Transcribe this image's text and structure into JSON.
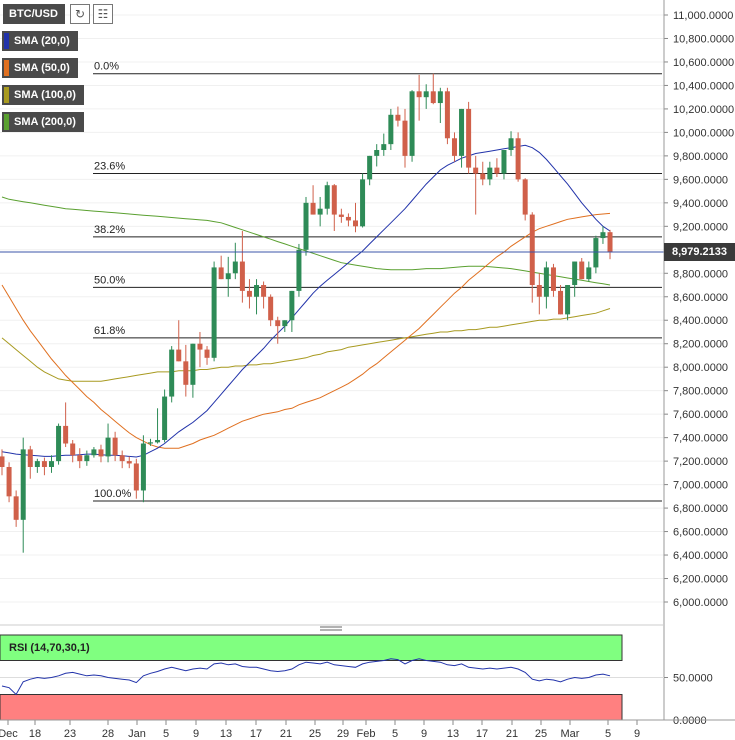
{
  "toolbar": {
    "symbol": "BTC/USD",
    "refresh_icon": "refresh-icon",
    "chart_settings_icon": "bar-chart-icon"
  },
  "indicators": [
    {
      "label": "SMA (20,0)",
      "color": "#2233aa"
    },
    {
      "label": "SMA (50,0)",
      "color": "#e07020"
    },
    {
      "label": "SMA (100,0)",
      "color": "#a89a20"
    },
    {
      "label": "SMA (200,0)",
      "color": "#5aa030"
    }
  ],
  "current_price": "8,979.2133",
  "fibonacci": [
    {
      "label": "0.0%",
      "price": 10500
    },
    {
      "label": "23.6%",
      "price": 9650
    },
    {
      "label": "38.2%",
      "price": 9110
    },
    {
      "label": "50.0%",
      "price": 8680
    },
    {
      "label": "61.8%",
      "price": 8250
    },
    {
      "label": "100.0%",
      "price": 6860
    }
  ],
  "y_axis_labels": [
    "11,000.0000",
    "10,800.0000",
    "10,600.0000",
    "10,400.0000",
    "10,200.0000",
    "10,000.0000",
    "9,800.0000",
    "9,600.0000",
    "9,400.0000",
    "9,200.0000",
    "9,000.0000",
    "8,800.0000",
    "8,600.0000",
    "8,400.0000",
    "8,200.0000",
    "8,000.0000",
    "7,800.0000",
    "7,600.0000",
    "7,400.0000",
    "7,200.0000",
    "7,000.0000",
    "6,800.0000",
    "6,600.0000",
    "6,400.0000",
    "6,200.0000",
    "6,000.0000"
  ],
  "rsi": {
    "label": "RSI (14,70,30,1)",
    "axis_labels": [
      "50.0000",
      "0.0000"
    ]
  },
  "x_axis_labels": [
    "Dec",
    "18",
    "23",
    "28",
    "Jan",
    "5",
    "9",
    "13",
    "17",
    "21",
    "25",
    "29",
    "Feb",
    "5",
    "9",
    "13",
    "17",
    "21",
    "25",
    "Mar",
    "5",
    "9"
  ],
  "colors": {
    "bull": "#2e8b57",
    "bear": "#d0604a",
    "fib_line": "#222222"
  },
  "chart_data": {
    "type": "candlestick",
    "symbol": "BTC/USD",
    "ylim": [
      5900,
      11100
    ],
    "candles": [
      [
        7240,
        7300,
        7080,
        7150
      ],
      [
        7150,
        7190,
        6850,
        6900
      ],
      [
        6900,
        6950,
        6640,
        6700
      ],
      [
        6700,
        7400,
        6420,
        7300
      ],
      [
        7300,
        7330,
        7050,
        7150
      ],
      [
        7150,
        7220,
        7100,
        7200
      ],
      [
        7200,
        7230,
        7080,
        7150
      ],
      [
        7150,
        7250,
        7100,
        7200
      ],
      [
        7200,
        7520,
        7170,
        7500
      ],
      [
        7500,
        7700,
        7320,
        7350
      ],
      [
        7350,
        7380,
        7190,
        7250
      ],
      [
        7250,
        7310,
        7140,
        7200
      ],
      [
        7200,
        7290,
        7160,
        7250
      ],
      [
        7250,
        7320,
        7230,
        7300
      ],
      [
        7300,
        7340,
        7190,
        7240
      ],
      [
        7240,
        7520,
        7190,
        7400
      ],
      [
        7400,
        7450,
        7200,
        7250
      ],
      [
        7250,
        7290,
        7140,
        7200
      ],
      [
        7200,
        7240,
        7140,
        7180
      ],
      [
        7180,
        7220,
        6880,
        6950
      ],
      [
        6950,
        7420,
        6850,
        7350
      ],
      [
        7350,
        7390,
        7330,
        7360
      ],
      [
        7360,
        7650,
        7350,
        7380
      ],
      [
        7380,
        7810,
        7360,
        7750
      ],
      [
        7750,
        8180,
        7700,
        8150
      ],
      [
        8150,
        8400,
        8050,
        8050
      ],
      [
        8050,
        8190,
        7750,
        7850
      ],
      [
        7850,
        8200,
        7740,
        8200
      ],
      [
        8200,
        8300,
        8000,
        8150
      ],
      [
        8150,
        8180,
        8020,
        8080
      ],
      [
        8080,
        8900,
        8050,
        8850
      ],
      [
        8850,
        8950,
        8750,
        8750
      ],
      [
        8750,
        8940,
        8600,
        8800
      ],
      [
        8800,
        9060,
        8750,
        8900
      ],
      [
        8900,
        9160,
        8550,
        8650
      ],
      [
        8650,
        8750,
        8500,
        8600
      ],
      [
        8600,
        8750,
        8450,
        8700
      ],
      [
        8700,
        8730,
        8500,
        8600
      ],
      [
        8600,
        8620,
        8350,
        8400
      ],
      [
        8400,
        8430,
        8200,
        8350
      ],
      [
        8350,
        8400,
        8300,
        8400
      ],
      [
        8400,
        8650,
        8300,
        8650
      ],
      [
        8650,
        9050,
        8600,
        9000
      ],
      [
        9000,
        9450,
        8950,
        9400
      ],
      [
        9400,
        9550,
        9300,
        9300
      ],
      [
        9300,
        9450,
        9200,
        9350
      ],
      [
        9350,
        9580,
        9300,
        9550
      ],
      [
        9550,
        9560,
        9160,
        9300
      ],
      [
        9300,
        9350,
        9230,
        9280
      ],
      [
        9280,
        9310,
        9200,
        9250
      ],
      [
        9250,
        9400,
        9150,
        9200
      ],
      [
        9200,
        9650,
        9190,
        9600
      ],
      [
        9600,
        9800,
        9550,
        9800
      ],
      [
        9800,
        9900,
        9710,
        9850
      ],
      [
        9850,
        9990,
        9800,
        9900
      ],
      [
        9900,
        10200,
        9850,
        10150
      ],
      [
        10150,
        10220,
        10050,
        10100
      ],
      [
        10100,
        10200,
        9700,
        9800
      ],
      [
        9800,
        10360,
        9750,
        10350
      ],
      [
        10350,
        10490,
        10100,
        10300
      ],
      [
        10300,
        10410,
        10200,
        10350
      ],
      [
        10350,
        10500,
        10240,
        10250
      ],
      [
        10250,
        10380,
        10080,
        10350
      ],
      [
        10350,
        10380,
        9900,
        9950
      ],
      [
        9950,
        10000,
        9750,
        9800
      ],
      [
        9800,
        10200,
        9700,
        10200
      ],
      [
        10200,
        10260,
        9650,
        9700
      ],
      [
        9700,
        9800,
        9300,
        9650
      ],
      [
        9650,
        9750,
        9550,
        9600
      ],
      [
        9600,
        9750,
        9550,
        9700
      ],
      [
        9700,
        9780,
        9620,
        9650
      ],
      [
        9650,
        9850,
        9600,
        9850
      ],
      [
        9850,
        10010,
        9800,
        9950
      ],
      [
        9950,
        10000,
        9580,
        9600
      ],
      [
        9600,
        9610,
        9250,
        9300
      ],
      [
        9300,
        9320,
        8550,
        8700
      ],
      [
        8700,
        8800,
        8450,
        8600
      ],
      [
        8600,
        8900,
        8500,
        8850
      ],
      [
        8850,
        8880,
        8600,
        8650
      ],
      [
        8650,
        8700,
        8450,
        8450
      ],
      [
        8450,
        8700,
        8400,
        8700
      ],
      [
        8700,
        8900,
        8600,
        8900
      ],
      [
        8900,
        8930,
        8750,
        8750
      ],
      [
        8750,
        8900,
        8730,
        8850
      ],
      [
        8850,
        9120,
        8800,
        9100
      ],
      [
        9100,
        9200,
        9050,
        9150
      ],
      [
        9150,
        9170,
        8920,
        8980
      ]
    ],
    "sma_20": [
      7280,
      7270,
      7260,
      7255,
      7250,
      7245,
      7240,
      7240,
      7245,
      7250,
      7250,
      7255,
      7260,
      7260,
      7255,
      7250,
      7250,
      7245,
      7240,
      7235,
      7250,
      7280,
      7310,
      7350,
      7400,
      7450,
      7490,
      7530,
      7580,
      7630,
      7700,
      7770,
      7840,
      7910,
      7980,
      8040,
      8100,
      8160,
      8230,
      8290,
      8350,
      8420,
      8490,
      8560,
      8630,
      8690,
      8740,
      8790,
      8840,
      8890,
      8940,
      8990,
      9050,
      9110,
      9170,
      9230,
      9290,
      9350,
      9420,
      9490,
      9560,
      9620,
      9680,
      9720,
      9750,
      9780,
      9800,
      9820,
      9830,
      9840,
      9850,
      9860,
      9870,
      9880,
      9890,
      9870,
      9830,
      9770,
      9700,
      9630,
      9560,
      9480,
      9400,
      9330,
      9260,
      9200,
      9160
    ],
    "sma_50": [
      8700,
      8600,
      8500,
      8400,
      8310,
      8230,
      8150,
      8070,
      8000,
      7930,
      7870,
      7810,
      7750,
      7700,
      7640,
      7590,
      7540,
      7490,
      7440,
      7400,
      7370,
      7340,
      7320,
      7310,
      7310,
      7310,
      7330,
      7350,
      7380,
      7400,
      7420,
      7450,
      7480,
      7510,
      7540,
      7560,
      7580,
      7600,
      7610,
      7620,
      7640,
      7650,
      7680,
      7700,
      7720,
      7740,
      7770,
      7800,
      7830,
      7860,
      7900,
      7940,
      7990,
      8030,
      8080,
      8130,
      8180,
      8230,
      8280,
      8330,
      8390,
      8450,
      8510,
      8570,
      8630,
      8680,
      8740,
      8790,
      8840,
      8890,
      8940,
      8980,
      9030,
      9070,
      9110,
      9150,
      9180,
      9200,
      9220,
      9240,
      9260,
      9270,
      9280,
      9290,
      9300,
      9305,
      9310
    ],
    "sma_100": [
      8250,
      8200,
      8150,
      8100,
      8050,
      8000,
      7960,
      7930,
      7900,
      7890,
      7880,
      7880,
      7880,
      7880,
      7880,
      7890,
      7900,
      7910,
      7920,
      7930,
      7940,
      7950,
      7960,
      7960,
      7960,
      7970,
      7970,
      7970,
      7980,
      7980,
      7990,
      8000,
      8000,
      8010,
      8010,
      8020,
      8020,
      8030,
      8030,
      8040,
      8050,
      8060,
      8070,
      8080,
      8100,
      8110,
      8130,
      8140,
      8150,
      8170,
      8180,
      8190,
      8200,
      8210,
      8220,
      8230,
      8240,
      8250,
      8260,
      8270,
      8280,
      8290,
      8300,
      8300,
      8310,
      8310,
      8320,
      8320,
      8330,
      8340,
      8340,
      8350,
      8360,
      8370,
      8380,
      8390,
      8400,
      8400,
      8410,
      8410,
      8420,
      8430,
      8440,
      8450,
      8460,
      8480,
      8500
    ],
    "sma_200": [
      9450,
      9430,
      9420,
      9410,
      9400,
      9390,
      9380,
      9370,
      9360,
      9350,
      9345,
      9340,
      9335,
      9330,
      9325,
      9320,
      9315,
      9310,
      9305,
      9300,
      9295,
      9290,
      9285,
      9280,
      9275,
      9270,
      9265,
      9260,
      9255,
      9250,
      9240,
      9230,
      9210,
      9190,
      9170,
      9150,
      9130,
      9110,
      9090,
      9070,
      9050,
      9030,
      9010,
      8990,
      8970,
      8950,
      8930,
      8910,
      8890,
      8880,
      8870,
      8860,
      8850,
      8840,
      8835,
      8830,
      8830,
      8830,
      8830,
      8835,
      8840,
      8840,
      8840,
      8845,
      8850,
      8855,
      8860,
      8860,
      8860,
      8855,
      8850,
      8845,
      8840,
      8830,
      8820,
      8810,
      8800,
      8790,
      8780,
      8770,
      8760,
      8750,
      8740,
      8730,
      8720,
      8710,
      8700
    ],
    "rsi_values": [
      40,
      38,
      30,
      45,
      48,
      50,
      49,
      50,
      52,
      55,
      56,
      54,
      52,
      53,
      52,
      50,
      49,
      48,
      47,
      44,
      52,
      55,
      57,
      60,
      62,
      60,
      58,
      60,
      61,
      60,
      66,
      67,
      65,
      66,
      63,
      62,
      62,
      60,
      58,
      57,
      58,
      60,
      65,
      68,
      67,
      66,
      68,
      65,
      64,
      63,
      62,
      66,
      68,
      69,
      70,
      72,
      71,
      66,
      70,
      72,
      70,
      69,
      68,
      65,
      64,
      66,
      62,
      61,
      60,
      61,
      60,
      61,
      62,
      60,
      56,
      48,
      46,
      48,
      47,
      45,
      48,
      50,
      49,
      50,
      53,
      54,
      52
    ],
    "rsi_levels": [
      70,
      50,
      30
    ]
  }
}
